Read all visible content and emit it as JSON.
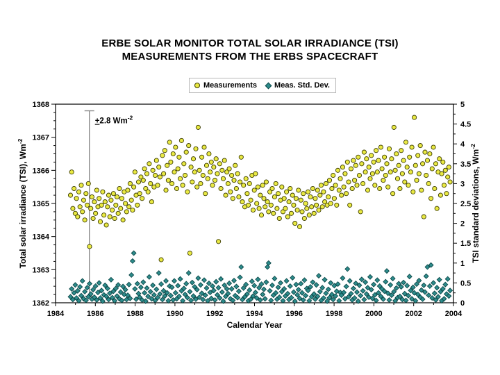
{
  "title": {
    "line1": "ERBE SOLAR MONITOR TOTAL SOLAR IRRADIANCE (TSI)",
    "line2": "MEASUREMENTS FROM THE ERBS SPACECRAFT"
  },
  "legend": {
    "items": [
      {
        "label": "Measurements",
        "marker": "circle"
      },
      {
        "label": "Meas. Std. Dev.",
        "marker": "diamond"
      }
    ]
  },
  "colors": {
    "measurement_fill": "#e9e943",
    "measurement_stroke": "#3c3c00",
    "stddev_fill": "#2e8c8c",
    "stddev_stroke": "#0c4848",
    "axis": "#000000",
    "error_bar": "#8c8c8c",
    "legend_border": "#b8b8b8"
  },
  "chart_data": {
    "type": "scatter",
    "title": "ERBE SOLAR MONITOR TOTAL SOLAR IRRADIANCE (TSI) MEASUREMENTS FROM THE ERBS SPACECRAFT",
    "xlabel": "Calendar Year",
    "ylabel_left": "Total solar irradiance (TSI), Wm-2",
    "ylabel_left_parts": {
      "base": "Total solar irradiance (TSI), Wm",
      "sup": "-2"
    },
    "ylabel_right": "TSI standard deviations, Wm-2",
    "ylabel_right_parts": {
      "base": "TSI standard deviations, Wm",
      "sup": "-2"
    },
    "grid": false,
    "legend_position": "top-center",
    "x_range": [
      1984,
      2004
    ],
    "y_left_range": [
      1362,
      1368
    ],
    "y_right_range": [
      0,
      5
    ],
    "x_ticks": [
      1984,
      1986,
      1988,
      1990,
      1992,
      1994,
      1996,
      1998,
      2000,
      2002,
      2004
    ],
    "x_tick_labels": [
      "1984",
      "1986",
      "1988",
      "1990",
      "1992",
      "1994",
      "1996",
      "1998",
      "2000",
      "2002",
      "2004"
    ],
    "x_minor_step": 1,
    "y_left_ticks": [
      1362,
      1363,
      1364,
      1365,
      1366,
      1367,
      1368
    ],
    "y_left_tick_labels": [
      "1362",
      "1363",
      "1364",
      "1365",
      "1366",
      "1367",
      "1368"
    ],
    "y_left_minor_step": 0.25,
    "y_right_ticks": [
      0,
      0.5,
      1,
      1.5,
      2,
      2.5,
      3,
      3.5,
      4,
      4.5,
      5
    ],
    "y_right_tick_labels": [
      "0",
      "0.5",
      "1",
      "1.5",
      "2",
      "2.5",
      "3",
      "3.5",
      "4",
      "4.5",
      "5"
    ],
    "y_right_minor_step": 0.25,
    "annotation": {
      "label_plus": "+",
      "label_main": "2.8 Wm",
      "label_sup": "-2",
      "bar_x_year": 1985.7,
      "bar_top": 1367.8,
      "bar_bottom": 1362.2
    },
    "series": [
      {
        "name": "Measurements",
        "axis": "left",
        "marker": "circle",
        "x_start": 1984.75,
        "x_step": 0.06,
        "values": [
          1365.25,
          1365.95,
          1364.85,
          1365.45,
          1364.7,
          1365.15,
          1364.6,
          1365.35,
          1364.9,
          1365.55,
          1364.75,
          1365.1,
          1364.5,
          1365.3,
          1364.95,
          1365.6,
          1363.7,
          1364.85,
          1365.2,
          1364.55,
          1365.05,
          1364.7,
          1365.4,
          1364.9,
          1365.15,
          1364.45,
          1364.95,
          1365.35,
          1364.65,
          1365.05,
          1364.35,
          1364.9,
          1365.25,
          1364.6,
          1365.1,
          1364.8,
          1365.3,
          1364.55,
          1364.95,
          1365.2,
          1364.7,
          1365.45,
          1364.85,
          1365.15,
          1364.5,
          1365.35,
          1365.0,
          1364.75,
          1365.4,
          1364.9,
          1365.6,
          1365.1,
          1364.8,
          1365.5,
          1365.95,
          1365.25,
          1364.95,
          1365.65,
          1365.3,
          1365.8,
          1365.15,
          1365.7,
          1366.05,
          1365.45,
          1365.9,
          1365.35,
          1366.2,
          1365.6,
          1365.05,
          1366.0,
          1365.5,
          1365.85,
          1366.3,
          1365.55,
          1366.1,
          1365.8,
          1363.3,
          1366.45,
          1365.9,
          1366.6,
          1365.4,
          1366.15,
          1365.7,
          1366.85,
          1366.25,
          1365.6,
          1366.5,
          1365.95,
          1366.7,
          1365.45,
          1366.05,
          1366.4,
          1365.75,
          1366.9,
          1365.55,
          1366.2,
          1365.85,
          1366.55,
          1365.35,
          1366.75,
          1363.5,
          1366.1,
          1365.65,
          1366.35,
          1365.95,
          1366.65,
          1365.5,
          1367.3,
          1366.0,
          1365.6,
          1366.4,
          1365.85,
          1366.7,
          1365.3,
          1366.15,
          1365.75,
          1366.5,
          1365.95,
          1366.25,
          1365.55,
          1366.1,
          1365.7,
          1366.35,
          1365.9,
          1363.85,
          1366.2,
          1365.45,
          1366.0,
          1365.75,
          1366.3,
          1365.25,
          1365.95,
          1365.6,
          1366.05,
          1365.35,
          1365.85,
          1365.15,
          1365.7,
          1366.15,
          1365.45,
          1365.9,
          1365.2,
          1365.65,
          1366.4,
          1365.05,
          1365.55,
          1364.9,
          1365.75,
          1365.3,
          1364.95,
          1365.6,
          1365.1,
          1365.85,
          1364.8,
          1365.4,
          1365.9,
          1365.0,
          1365.5,
          1364.85,
          1365.25,
          1364.65,
          1365.55,
          1365.15,
          1364.9,
          1365.65,
          1365.05,
          1364.75,
          1365.35,
          1364.95,
          1365.45,
          1364.7,
          1365.2,
          1365.6,
          1364.85,
          1365.3,
          1364.55,
          1365.1,
          1365.5,
          1364.75,
          1365.15,
          1364.85,
          1365.35,
          1364.6,
          1365.05,
          1365.45,
          1364.7,
          1365.25,
          1364.95,
          1364.4,
          1365.15,
          1364.8,
          1365.4,
          1364.3,
          1365.1,
          1364.75,
          1365.3,
          1364.55,
          1365.0,
          1364.85,
          1365.35,
          1364.65,
          1365.2,
          1364.9,
          1365.45,
          1364.7,
          1365.15,
          1364.95,
          1365.4,
          1364.8,
          1365.25,
          1365.55,
          1364.9,
          1365.35,
          1365.05,
          1365.6,
          1364.95,
          1365.2,
          1365.7,
          1365.0,
          1365.45,
          1365.85,
          1365.15,
          1365.55,
          1364.95,
          1366.0,
          1365.4,
          1365.75,
          1365.25,
          1366.1,
          1365.5,
          1365.9,
          1365.3,
          1366.25,
          1365.65,
          1364.95,
          1366.05,
          1365.45,
          1366.3,
          1365.7,
          1366.15,
          1365.55,
          1366.4,
          1365.85,
          1364.75,
          1366.2,
          1365.6,
          1366.55,
          1365.95,
          1366.35,
          1365.4,
          1366.1,
          1365.75,
          1366.45,
          1365.9,
          1366.25,
          1365.55,
          1366.6,
          1365.95,
          1366.3,
          1365.45,
          1366.7,
          1366.05,
          1365.7,
          1366.4,
          1365.85,
          1366.2,
          1365.5,
          1366.65,
          1365.95,
          1366.35,
          1365.3,
          1367.3,
          1366.0,
          1366.5,
          1365.75,
          1366.15,
          1365.45,
          1366.6,
          1365.9,
          1366.3,
          1365.65,
          1366.85,
          1366.1,
          1365.55,
          1366.4,
          1365.95,
          1366.7,
          1365.35,
          1367.6,
          1366.15,
          1365.7,
          1366.45,
          1365.9,
          1366.75,
          1365.4,
          1366.2,
          1364.6,
          1366.55,
          1365.85,
          1366.3,
          1365.6,
          1366.5,
          1365.15,
          1366.05,
          1366.7,
          1365.45,
          1366.2,
          1364.85,
          1365.95,
          1366.35,
          1365.25,
          1365.9,
          1366.25,
          1365.55,
          1366.0,
          1365.3,
          1365.8,
          1366.1,
          1365.65
        ]
      },
      {
        "name": "Meas. Std. Dev.",
        "axis": "right",
        "marker": "diamond",
        "x_start": 1984.75,
        "x_step": 0.06,
        "values": [
          0.15,
          0.35,
          0.08,
          0.25,
          0.45,
          0.12,
          0.3,
          0.05,
          0.4,
          0.18,
          0.55,
          0.1,
          0.28,
          0.06,
          0.38,
          0.15,
          0.48,
          0.22,
          0.09,
          0.33,
          0.14,
          0.42,
          0.07,
          0.26,
          0.5,
          0.12,
          0.31,
          0.04,
          0.2,
          0.44,
          0.16,
          0.36,
          0.08,
          0.24,
          0.58,
          0.13,
          0.29,
          0.05,
          0.36,
          0.17,
          0.45,
          0.1,
          0.27,
          0.06,
          0.41,
          0.21,
          0.33,
          0.08,
          0.19,
          0.46,
          0.11,
          0.7,
          1.05,
          1.25,
          0.35,
          0.09,
          0.48,
          0.23,
          0.14,
          0.39,
          0.07,
          0.52,
          0.25,
          0.04,
          0.37,
          0.16,
          0.65,
          0.28,
          0.1,
          0.44,
          0.2,
          0.06,
          0.34,
          0.13,
          0.75,
          0.22,
          0.47,
          0.08,
          0.3,
          0.17,
          0.55,
          0.25,
          0.05,
          0.42,
          0.18,
          0.39,
          0.07,
          0.55,
          0.25,
          0.1,
          0.43,
          0.16,
          0.6,
          0.3,
          0.05,
          0.36,
          0.21,
          0.48,
          0.13,
          0.75,
          0.28,
          0.06,
          0.51,
          0.17,
          0.4,
          0.09,
          0.33,
          0.62,
          0.14,
          0.45,
          0.24,
          0.08,
          0.57,
          0.19,
          0.37,
          0.05,
          0.49,
          0.26,
          0.11,
          0.42,
          0.31,
          0.07,
          0.53,
          0.2,
          0.38,
          0.12,
          0.6,
          0.27,
          0.04,
          0.44,
          0.16,
          0.35,
          0.23,
          0.49,
          0.1,
          0.35,
          0.06,
          0.56,
          0.18,
          0.41,
          0.13,
          0.29,
          0.64,
          0.9,
          0.08,
          0.37,
          0.15,
          0.46,
          0.22,
          0.05,
          0.32,
          0.09,
          0.54,
          0.17,
          0.43,
          0.26,
          0.12,
          0.59,
          0.38,
          0.07,
          0.47,
          0.21,
          0.34,
          0.1,
          0.52,
          0.9,
          1.0,
          0.3,
          0.06,
          0.44,
          0.19,
          0.61,
          0.25,
          0.09,
          0.39,
          0.14,
          0.5,
          0.28,
          0.05,
          0.35,
          0.17,
          0.55,
          0.23,
          0.08,
          0.42,
          0.13,
          0.63,
          0.27,
          0.04,
          0.46,
          0.2,
          0.33,
          0.11,
          0.48,
          0.25,
          0.07,
          0.57,
          0.18,
          0.36,
          0.31,
          0.05,
          0.4,
          0.15,
          0.52,
          0.22,
          0.09,
          0.45,
          0.16,
          0.68,
          0.28,
          0.06,
          0.38,
          0.12,
          0.58,
          0.24,
          0.04,
          0.34,
          0.13,
          0.5,
          0.21,
          0.08,
          0.43,
          0.17,
          0.29,
          0.47,
          0.05,
          0.26,
          0.19,
          0.62,
          0.26,
          0.1,
          0.41,
          0.85,
          0.15,
          0.55,
          0.23,
          0.07,
          0.36,
          0.12,
          0.49,
          0.27,
          0.04,
          0.44,
          0.18,
          0.59,
          0.3,
          0.08,
          0.52,
          0.22,
          0.38,
          0.14,
          0.65,
          0.33,
          0.11,
          0.46,
          0.2,
          0.06,
          0.57,
          0.25,
          0.42,
          0.16,
          0.35,
          0.09,
          0.29,
          0.53,
          0.8,
          0.24,
          0.07,
          0.45,
          0.19,
          0.61,
          0.28,
          0.05,
          0.37,
          0.13,
          0.48,
          0.16,
          0.4,
          0.08,
          0.51,
          0.23,
          0.06,
          0.43,
          0.18,
          0.66,
          0.31,
          0.1,
          0.39,
          0.25,
          0.05,
          0.47,
          0.21,
          0.56,
          0.14,
          0.32,
          0.09,
          0.44,
          0.27,
          0.67,
          0.9,
          0.19,
          0.42,
          0.95,
          0.12,
          0.5,
          0.24,
          0.07,
          0.38,
          0.15,
          0.58,
          0.28,
          0.05,
          0.35,
          0.1,
          0.46,
          0.22,
          0.6,
          0.17,
          0.31
        ]
      }
    ]
  }
}
